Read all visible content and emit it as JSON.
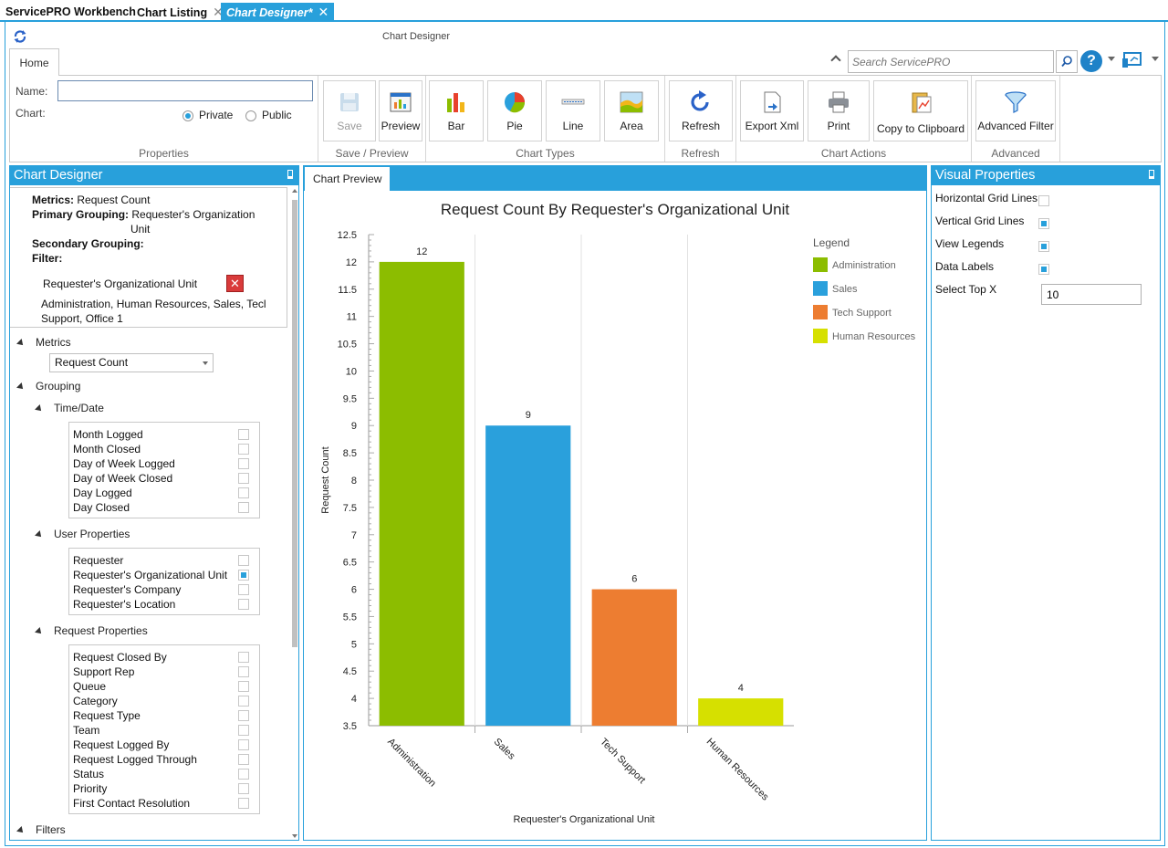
{
  "doc_tabs": [
    {
      "label": "ServicePRO Workbench",
      "closable": false
    },
    {
      "label": "Chart Listing",
      "closable": true
    },
    {
      "label": "Chart Designer*",
      "closable": true,
      "active": true
    }
  ],
  "window_title": "Chart Designer",
  "ribbon": {
    "tab": "Home",
    "properties": {
      "name_label": "Name:",
      "name_value": "",
      "chart_label": "Chart:",
      "private_label": "Private",
      "public_label": "Public",
      "selected": "Private",
      "group_label": "Properties"
    },
    "save_preview": {
      "save": "Save",
      "preview": "Preview",
      "group_label": "Save / Preview"
    },
    "chart_types": {
      "bar": "Bar",
      "pie": "Pie",
      "line": "Line",
      "area": "Area",
      "group_label": "Chart Types"
    },
    "refresh": {
      "refresh": "Refresh",
      "group_label": "Refresh"
    },
    "chart_actions": {
      "export": "Export Xml",
      "print": "Print",
      "copy": "Copy to Clipboard",
      "group_label": "Chart Actions"
    },
    "advanced": {
      "filter": "Advanced Filter",
      "group_label": "Advanced"
    }
  },
  "search": {
    "placeholder": "Search ServicePRO"
  },
  "left_panel": {
    "title": "Chart Designer",
    "summary": {
      "metrics_label": "Metrics:",
      "metrics_value": "Request Count",
      "primary_label": "Primary Grouping:",
      "primary_value_1": "Requester's Organization",
      "primary_value_2": "Unit",
      "secondary_label": "Secondary Grouping:",
      "filter_label": "Filter:",
      "filter_field": "Requester's Organizational Unit",
      "filter_values_1": "Administration, Human Resources, Sales, Tecl",
      "filter_values_2": "Support, Office 1"
    },
    "metrics_node": "Metrics",
    "metrics_selected": "Request Count",
    "grouping_node": "Grouping",
    "time_date_node": "Time/Date",
    "time_date_items": [
      {
        "label": "Month Logged",
        "checked": false
      },
      {
        "label": "Month Closed",
        "checked": false
      },
      {
        "label": "Day of Week Logged",
        "checked": false
      },
      {
        "label": "Day of Week Closed",
        "checked": false
      },
      {
        "label": "Day Logged",
        "checked": false
      },
      {
        "label": "Day Closed",
        "checked": false
      }
    ],
    "user_props_node": "User Properties",
    "user_props_items": [
      {
        "label": "Requester",
        "checked": false
      },
      {
        "label": "Requester's Organizational Unit",
        "checked": true
      },
      {
        "label": "Requester's Company",
        "checked": false
      },
      {
        "label": "Requester's Location",
        "checked": false
      }
    ],
    "request_props_node": "Request Properties",
    "request_props_items": [
      {
        "label": "Request Closed By",
        "checked": false
      },
      {
        "label": "Support Rep",
        "checked": false
      },
      {
        "label": "Queue",
        "checked": false
      },
      {
        "label": "Category",
        "checked": false
      },
      {
        "label": "Request Type",
        "checked": false
      },
      {
        "label": "Team",
        "checked": false
      },
      {
        "label": "Request Logged By",
        "checked": false
      },
      {
        "label": "Request Logged Through",
        "checked": false
      },
      {
        "label": "Status",
        "checked": false
      },
      {
        "label": "Priority",
        "checked": false
      },
      {
        "label": "First Contact Resolution",
        "checked": false
      }
    ],
    "filters_node": "Filters"
  },
  "center_panel": {
    "tab": "Chart Preview"
  },
  "chart_data": {
    "type": "bar",
    "title": "Request Count By Requester's Organizational Unit",
    "xlabel": "Requester's Organizational Unit",
    "ylabel": "Request Count",
    "categories": [
      "Administration",
      "Sales",
      "Tech Support",
      "Human Resources"
    ],
    "values": [
      12,
      9,
      6,
      4
    ],
    "colors": [
      "#8cbd00",
      "#2aa0dc",
      "#ed7d31",
      "#d6e000"
    ],
    "ylim": [
      3.5,
      12.5
    ],
    "yticks": [
      "12.5",
      "12",
      "11.5",
      "11",
      "10.5",
      "10",
      "9.5",
      "9",
      "8.5",
      "8",
      "7.5",
      "7",
      "6.5",
      "6",
      "5.5",
      "5",
      "4.5",
      "4",
      "3.5"
    ],
    "data_labels": [
      "12",
      "9",
      "6",
      "4"
    ],
    "legend_title": "Legend",
    "legend_position": "top-right",
    "vertical_grid": true,
    "horizontal_grid": false
  },
  "right_panel": {
    "title": "Visual Properties",
    "horizontal_grid": {
      "label": "Horizontal Grid Lines",
      "checked": false
    },
    "vertical_grid": {
      "label": "Vertical Grid Lines",
      "checked": true
    },
    "view_legends": {
      "label": "View Legends",
      "checked": true
    },
    "data_labels": {
      "label": "Data Labels",
      "checked": true
    },
    "top_x": {
      "label": "Select Top X",
      "value": "10"
    }
  }
}
